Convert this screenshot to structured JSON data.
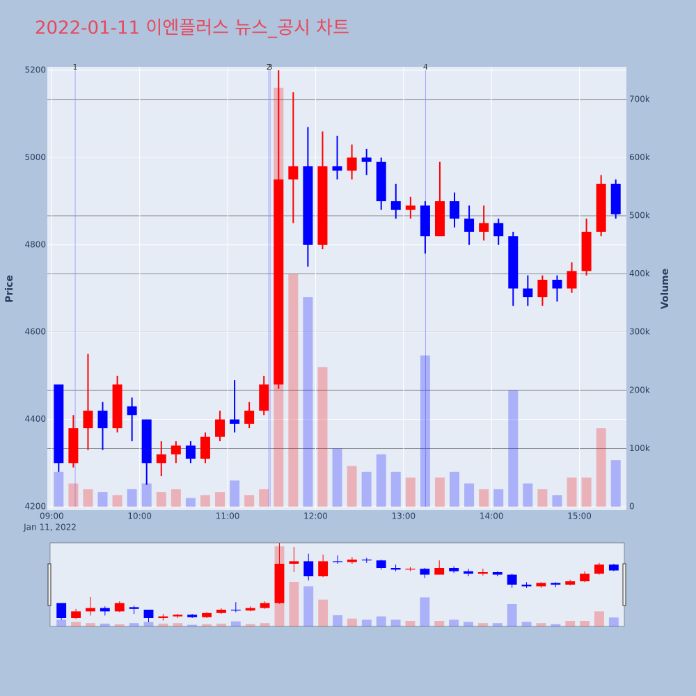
{
  "chart_data": {
    "type": "candlestick",
    "title": "2022-01-11 이엔플러스 뉴스_공시 차트",
    "y_label": "Price",
    "y2_label": "Volume",
    "x_date_label": "Jan 11, 2022",
    "up_color": "#ff0000",
    "down_color": "#0000ff",
    "x": [
      "09:00",
      "09:10",
      "09:20",
      "09:30",
      "09:40",
      "09:50",
      "10:00",
      "10:10",
      "10:20",
      "10:30",
      "10:40",
      "10:50",
      "11:00",
      "11:10",
      "11:20",
      "11:30",
      "11:40",
      "11:50",
      "12:00",
      "12:10",
      "12:20",
      "12:30",
      "12:40",
      "12:50",
      "13:00",
      "13:10",
      "13:20",
      "13:30",
      "13:40",
      "13:50",
      "14:00",
      "14:10",
      "14:20",
      "14:30",
      "14:40",
      "14:50",
      "15:00",
      "15:10",
      "15:20"
    ],
    "open": [
      4480,
      4300,
      4380,
      4420,
      4380,
      4430,
      4400,
      4300,
      4320,
      4340,
      4310,
      4360,
      4400,
      4390,
      4420,
      4480,
      4950,
      4980,
      4800,
      4980,
      4970,
      5000,
      4990,
      4900,
      4880,
      4890,
      4820,
      4900,
      4860,
      4830,
      4850,
      4820,
      4700,
      4680,
      4720,
      4700,
      4740,
      4830,
      4940
    ],
    "high": [
      4480,
      4410,
      4550,
      4440,
      4500,
      4450,
      4400,
      4350,
      4350,
      4350,
      4370,
      4420,
      4490,
      4440,
      4500,
      5200,
      5150,
      5070,
      5060,
      5050,
      5030,
      5020,
      5000,
      4940,
      4910,
      4900,
      4990,
      4920,
      4890,
      4890,
      4860,
      4830,
      4730,
      4730,
      4730,
      4760,
      4860,
      4960,
      4950
    ],
    "low": [
      4280,
      4290,
      4330,
      4330,
      4370,
      4350,
      4250,
      4270,
      4300,
      4300,
      4300,
      4350,
      4370,
      4380,
      4410,
      4470,
      4850,
      4750,
      4790,
      4950,
      4950,
      4960,
      4880,
      4860,
      4860,
      4780,
      4820,
      4840,
      4800,
      4810,
      4800,
      4660,
      4660,
      4660,
      4670,
      4690,
      4730,
      4820,
      4860
    ],
    "close": [
      4300,
      4380,
      4420,
      4380,
      4480,
      4410,
      4300,
      4320,
      4340,
      4310,
      4360,
      4400,
      4390,
      4420,
      4480,
      4950,
      4980,
      4800,
      4980,
      4970,
      5000,
      4990,
      4900,
      4880,
      4890,
      4820,
      4900,
      4860,
      4830,
      4850,
      4820,
      4700,
      4680,
      4720,
      4700,
      4740,
      4830,
      4940,
      4870
    ],
    "volume": [
      60000,
      40000,
      30000,
      25000,
      20000,
      30000,
      40000,
      25000,
      30000,
      15000,
      20000,
      25000,
      45000,
      20000,
      30000,
      720000,
      400000,
      360000,
      240000,
      100000,
      70000,
      60000,
      90000,
      60000,
      50000,
      260000,
      50000,
      60000,
      40000,
      30000,
      30000,
      200000,
      40000,
      30000,
      20000,
      50000,
      50000,
      135000,
      80000
    ],
    "xlim": [
      "08:57",
      "15:32"
    ],
    "xticks": [
      "09:00",
      "10:00",
      "11:00",
      "12:00",
      "13:00",
      "14:00",
      "15:00"
    ],
    "ylim": [
      4200,
      5200
    ],
    "yticks": [
      4200,
      4400,
      4600,
      4800,
      5000,
      5200
    ],
    "y2lim": [
      0,
      750000
    ],
    "y2ticks": [
      0,
      {
        "value": 100000,
        "label": "100k"
      },
      {
        "value": 200000,
        "label": "200k"
      },
      {
        "value": 300000,
        "label": "300k"
      },
      {
        "value": 400000,
        "label": "400k"
      },
      {
        "value": 500000,
        "label": "500k"
      },
      {
        "value": 600000,
        "label": "600k"
      },
      {
        "value": 700000,
        "label": "700k"
      }
    ],
    "news_markers": [
      {
        "x": "09:16",
        "label": "1"
      },
      {
        "x": "11:28",
        "label": "2"
      },
      {
        "x": "11:29",
        "label": "3"
      },
      {
        "x": "13:15",
        "label": "4"
      }
    ],
    "rangeslider": true
  }
}
